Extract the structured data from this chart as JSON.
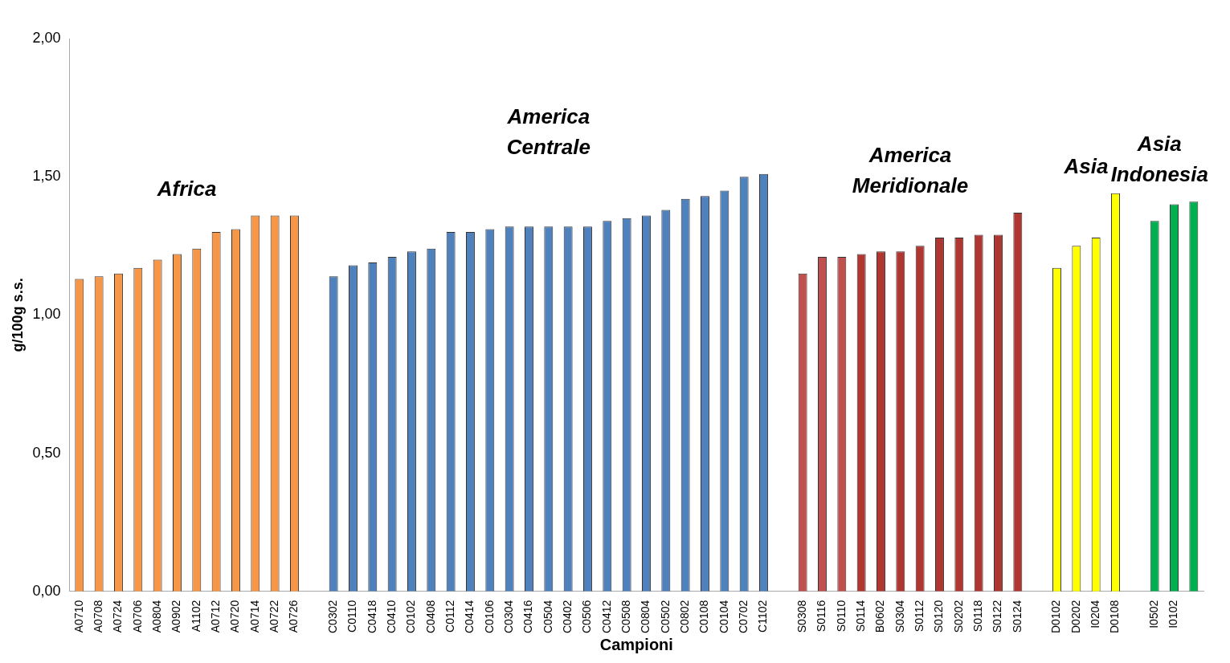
{
  "chart_data": {
    "type": "bar",
    "xlabel": "Campioni",
    "ylabel": "g/100g s.s.",
    "categories": [
      "A0710",
      "A0708",
      "A0724",
      "A0706",
      "A0804",
      "A0902",
      "A1102",
      "A0712",
      "A0720",
      "A0714",
      "A0722",
      "A0726",
      null,
      "C0302",
      "C0110",
      "C0418",
      "C0410",
      "C0102",
      "C0408",
      "C0112",
      "C0414",
      "C0106",
      "C0304",
      "C0416",
      "C0504",
      "C0402",
      "C0506",
      "C0412",
      "C0508",
      "C0804",
      "C0502",
      "C0802",
      "C0108",
      "C0104",
      "C0702",
      "C1102",
      null,
      "S0308",
      "S0116",
      "S0110",
      "S0114",
      "B0602",
      "S0304",
      "S0112",
      "S0120",
      "S0202",
      "S0118",
      "S0122",
      "S0124",
      null,
      "D0102",
      "D0202",
      "I0204",
      "D0108",
      null,
      "I0502",
      "I0102",
      null
    ],
    "values": [
      1.13,
      1.14,
      1.15,
      1.17,
      1.2,
      1.22,
      1.24,
      1.3,
      1.31,
      1.36,
      1.36,
      1.36,
      null,
      1.14,
      1.18,
      1.19,
      1.21,
      1.23,
      1.24,
      1.3,
      1.3,
      1.31,
      1.32,
      1.32,
      1.32,
      1.32,
      1.32,
      1.34,
      1.35,
      1.36,
      1.38,
      1.42,
      1.43,
      1.45,
      1.5,
      1.51,
      null,
      1.15,
      1.21,
      1.21,
      1.22,
      1.23,
      1.23,
      1.25,
      1.28,
      1.28,
      1.29,
      1.29,
      1.37,
      null,
      1.17,
      1.25,
      1.28,
      1.44,
      null,
      1.34,
      1.4,
      1.41
    ],
    "colors": [
      "#f79646",
      "#f79646",
      "#f79646",
      "#f79646",
      "#f79646",
      "#f79646",
      "#f79646",
      "#f79646",
      "#f79646",
      "#f79646",
      "#f79646",
      "#f79646",
      null,
      "#4f81bd",
      "#4f81bd",
      "#4f81bd",
      "#4f81bd",
      "#4f81bd",
      "#4f81bd",
      "#4f81bd",
      "#4f81bd",
      "#4f81bd",
      "#4f81bd",
      "#4f81bd",
      "#4f81bd",
      "#4f81bd",
      "#4f81bd",
      "#4f81bd",
      "#4f81bd",
      "#4f81bd",
      "#4f81bd",
      "#4f81bd",
      "#4f81bd",
      "#4f81bd",
      "#4f81bd",
      "#4f81bd",
      null,
      "#c0504d",
      "#c0504d",
      "#c0504d",
      "#b03632",
      "#b03632",
      "#b03632",
      "#b03632",
      "#b03632",
      "#b03632",
      "#b03632",
      "#b03632",
      "#b03632",
      null,
      "#ffff00",
      "#ffff00",
      "#ffff00",
      "#ffff00",
      null,
      "#00b050",
      "#00b050",
      "#00b050"
    ],
    "ylim": [
      0,
      2
    ],
    "yticks": [
      {
        "value": 0,
        "label": "0,00"
      },
      {
        "value": 0.5,
        "label": "0,50"
      },
      {
        "value": 1,
        "label": "1,00"
      },
      {
        "value": 1.5,
        "label": "1,50"
      },
      {
        "value": 2,
        "label": "2,00"
      }
    ],
    "grid": false,
    "legend": false,
    "annotations": [
      "Africa",
      "America\nCentrale",
      "America\nMeridionale",
      "Asia",
      "Asia\nIndonesia"
    ]
  }
}
